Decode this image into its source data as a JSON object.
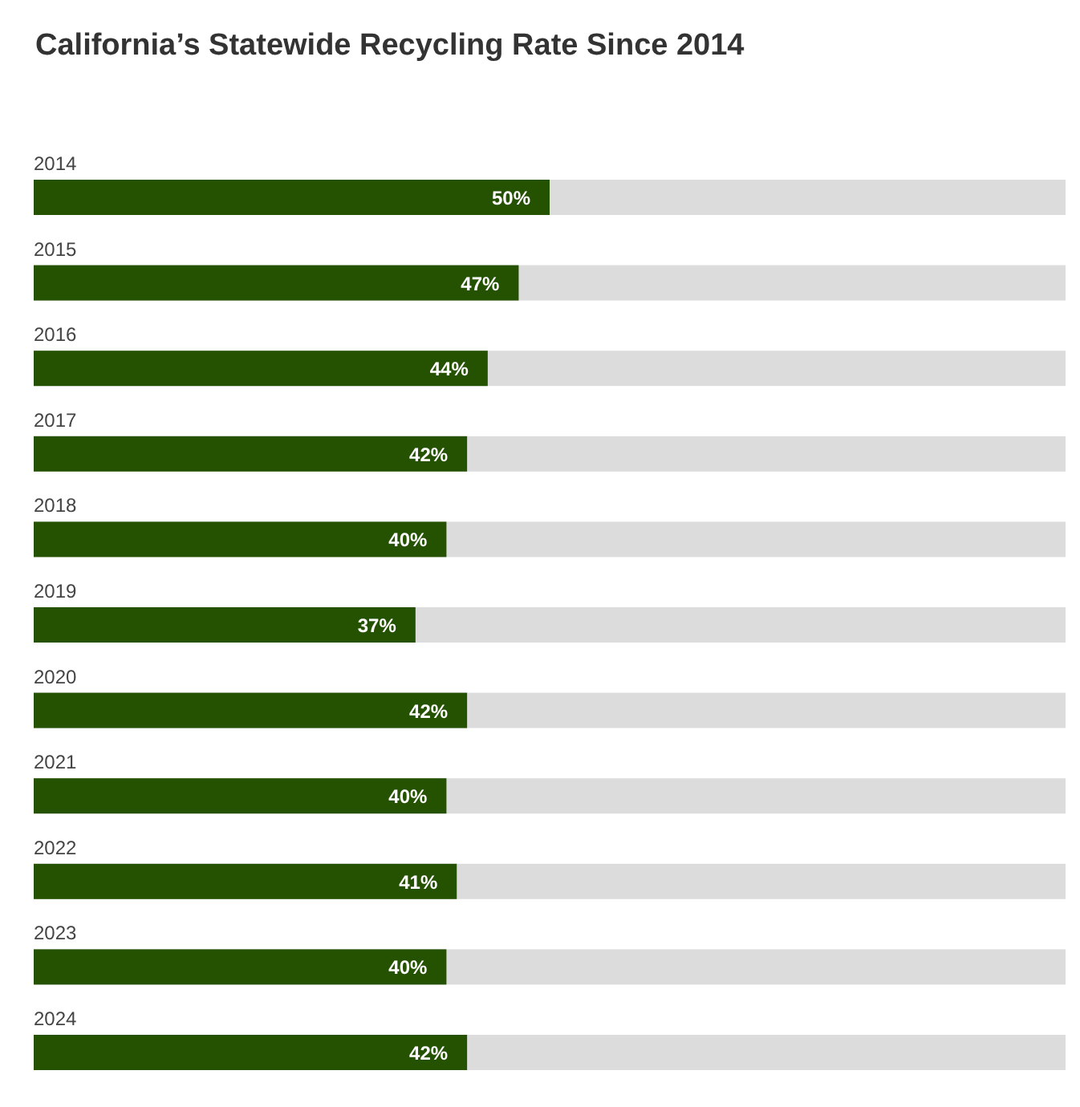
{
  "chart_data": {
    "type": "bar",
    "orientation": "horizontal",
    "title": "California’s Statewide Recycling Rate Since 2014",
    "categories": [
      "2014",
      "2015",
      "2016",
      "2017",
      "2018",
      "2019",
      "2020",
      "2021",
      "2022",
      "2023",
      "2024"
    ],
    "values": [
      50,
      47,
      44,
      42,
      40,
      37,
      42,
      40,
      41,
      40,
      42
    ],
    "value_labels": [
      "50%",
      "47%",
      "44%",
      "42%",
      "40%",
      "37%",
      "42%",
      "40%",
      "41%",
      "40%",
      "42%"
    ],
    "color": "#245200",
    "xlim": [
      0,
      100
    ],
    "tick_labels": "y"
  }
}
